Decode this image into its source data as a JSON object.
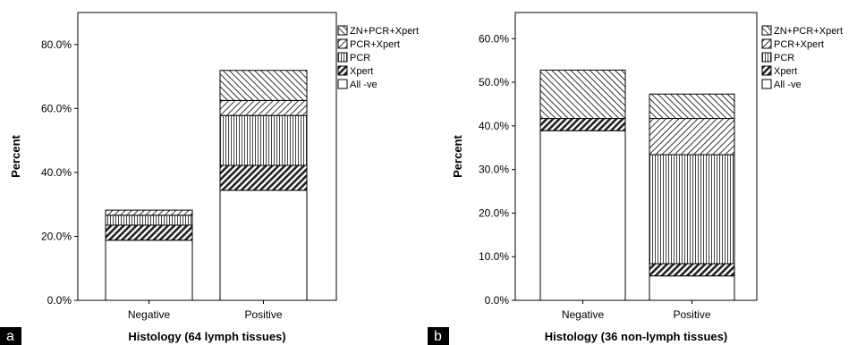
{
  "panel_labels": [
    "a",
    "b"
  ],
  "legend_order": [
    "ZN+PCR+Xpert",
    "PCR+Xpert",
    "PCR",
    "Xpert",
    "All -ve"
  ],
  "chart_data": [
    {
      "type": "bar",
      "stacked": true,
      "title": "",
      "xlabel": "Histology (64 lymph tissues)",
      "ylabel": "Percent",
      "ylim": [
        0,
        90
      ],
      "yticks": [
        "0.0%",
        "20.0%",
        "40.0%",
        "60.0%",
        "80.0%"
      ],
      "categories": [
        "Negative",
        "Positive"
      ],
      "legend_position": "right",
      "series": [
        {
          "name": "All -ve",
          "pattern": "white",
          "values": [
            18.8,
            34.4
          ]
        },
        {
          "name": "Xpert",
          "pattern": "dense-diagonal",
          "values": [
            4.7,
            7.8
          ]
        },
        {
          "name": "PCR",
          "pattern": "vertical",
          "values": [
            3.1,
            15.6
          ]
        },
        {
          "name": "PCR+Xpert",
          "pattern": "diagonal-up",
          "values": [
            1.6,
            4.7
          ]
        },
        {
          "name": "ZN+PCR+Xpert",
          "pattern": "diagonal-down",
          "values": [
            0.0,
            9.4
          ]
        }
      ]
    },
    {
      "type": "bar",
      "stacked": true,
      "title": "",
      "xlabel": "Histology (36 non-lymph tissues)",
      "ylabel": "Percent",
      "ylim": [
        0,
        66
      ],
      "yticks": [
        "0.0%",
        "10.0%",
        "20.0%",
        "30.0%",
        "40.0%",
        "50.0%",
        "60.0%"
      ],
      "categories": [
        "Negative",
        "Positive"
      ],
      "legend_position": "right",
      "series": [
        {
          "name": "All -ve",
          "pattern": "white",
          "values": [
            38.9,
            5.6
          ]
        },
        {
          "name": "Xpert",
          "pattern": "dense-diagonal",
          "values": [
            2.8,
            2.8
          ]
        },
        {
          "name": "PCR",
          "pattern": "vertical",
          "values": [
            0.0,
            25.0
          ]
        },
        {
          "name": "PCR+Xpert",
          "pattern": "diagonal-up",
          "values": [
            0.0,
            8.3
          ]
        },
        {
          "name": "ZN+PCR+Xpert",
          "pattern": "diagonal-down",
          "values": [
            11.1,
            5.6
          ]
        }
      ]
    }
  ]
}
